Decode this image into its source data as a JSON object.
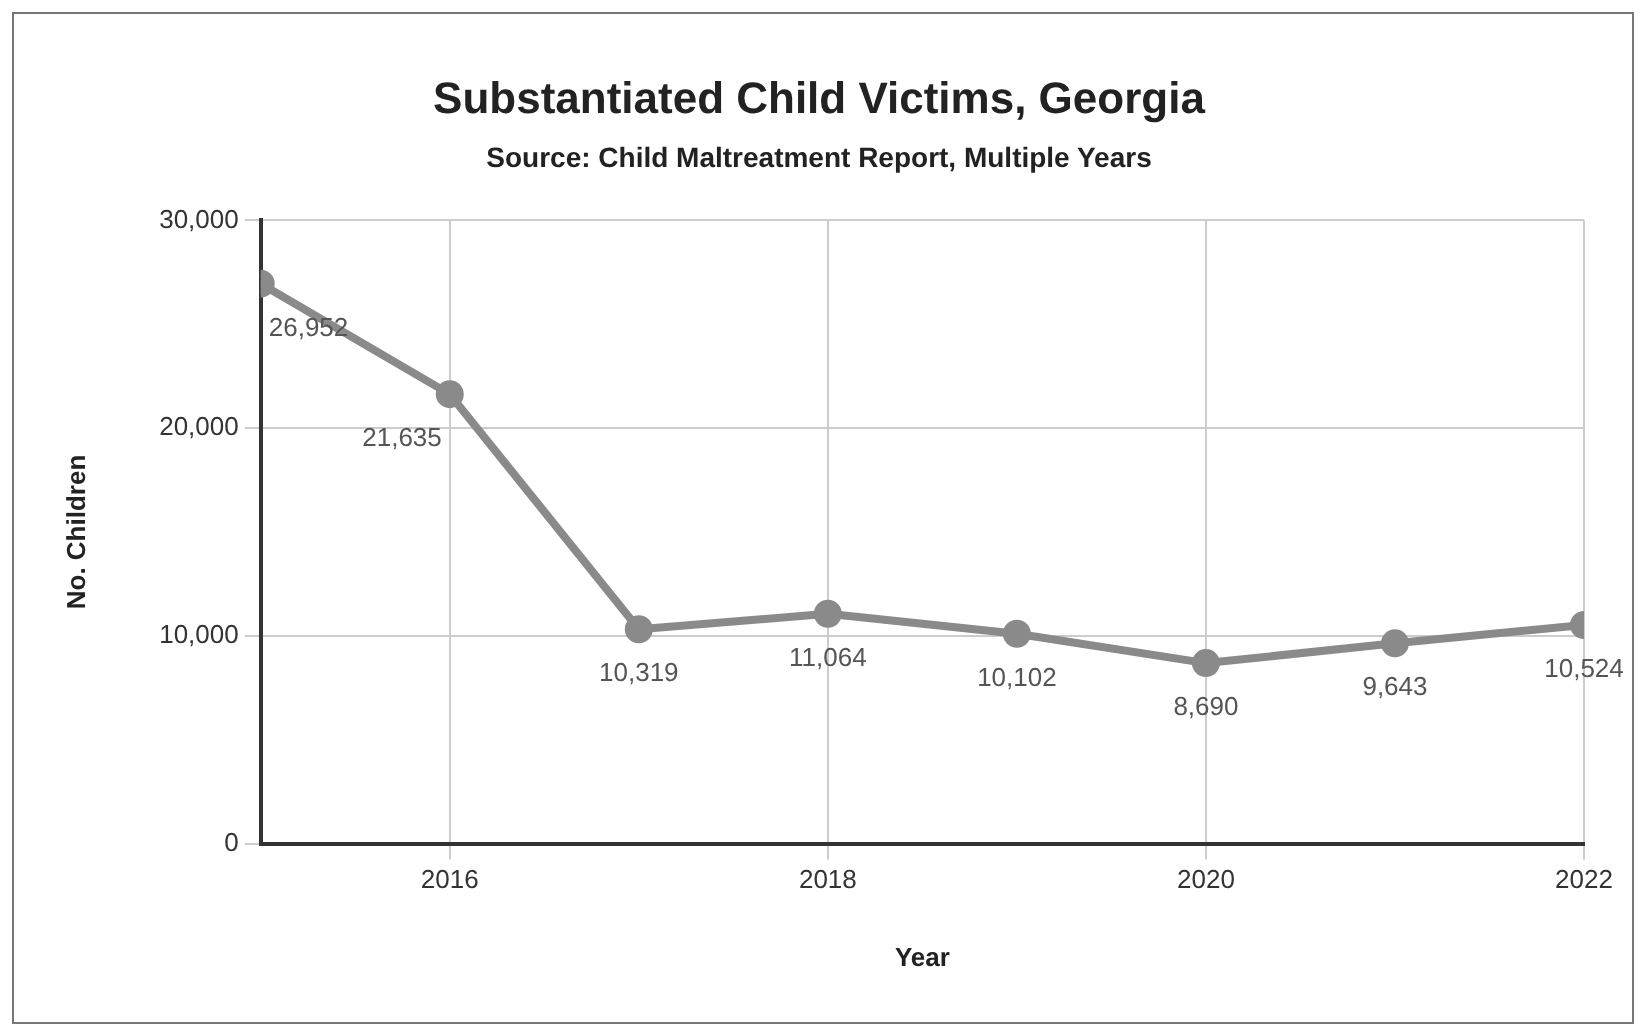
{
  "chart_data": {
    "type": "line",
    "title": "Substantiated Child Victims, Georgia",
    "subtitle": "Source: Child Maltreatment Report, Multiple Years",
    "xlabel": "Year",
    "ylabel": "No. Children",
    "x": [
      2015,
      2016,
      2017,
      2018,
      2019,
      2020,
      2021,
      2022
    ],
    "series": [
      {
        "color": "#8a8a8a",
        "values": [
          26952,
          21635,
          10319,
          11064,
          10102,
          8690,
          9643,
          10524
        ],
        "value_labels": [
          "26,952",
          "21,635",
          "10,319",
          "11,064",
          "10,102",
          "8,690",
          "9,643",
          "10,524"
        ]
      }
    ],
    "xlim": [
      2015,
      2022
    ],
    "xticks": [
      2016,
      2018,
      2020,
      2022
    ],
    "ylim": [
      0,
      30000
    ],
    "yticks": [
      0,
      {
        "value": 10000,
        "label": "10,000"
      },
      {
        "value": 20000,
        "label": "20,000"
      },
      {
        "value": 30000,
        "label": "30,000"
      }
    ],
    "grid": true,
    "legend": false,
    "marker": "circle",
    "line_style": "solid"
  }
}
